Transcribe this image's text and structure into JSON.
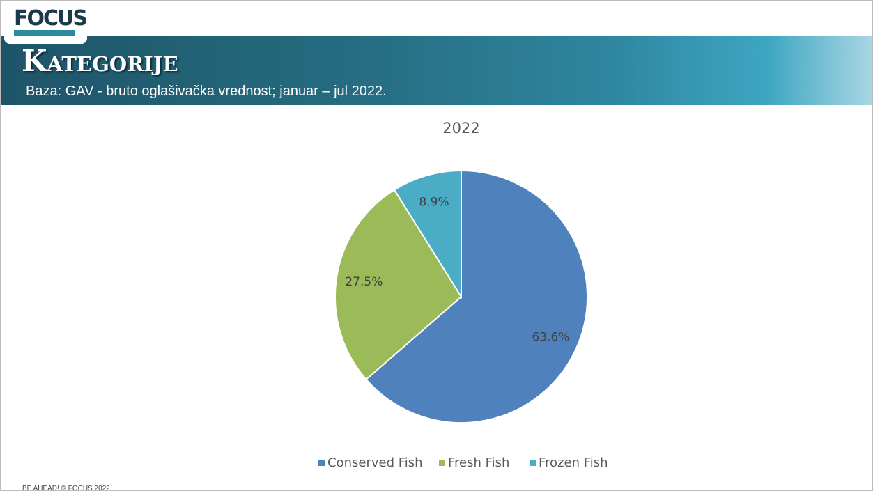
{
  "header": {
    "logo": "FOCUS",
    "title": "Kategorije",
    "subtitle": "Baza: GAV - bruto oglašivačka vrednost; januar – jul 2022."
  },
  "footer": {
    "text": "BE AHEAD! © FOCUS 2022"
  },
  "chart_data": {
    "type": "pie",
    "title": "2022",
    "categories": [
      "Conserved Fish",
      "Fresh Fish",
      "Frozen Fish"
    ],
    "values": [
      63.6,
      27.5,
      8.9
    ],
    "value_labels": [
      "63.6%",
      "27.5%",
      "8.9%"
    ],
    "colors": [
      "#4f81bd",
      "#9bbb59",
      "#4bacc6"
    ],
    "legend": "bottom"
  }
}
